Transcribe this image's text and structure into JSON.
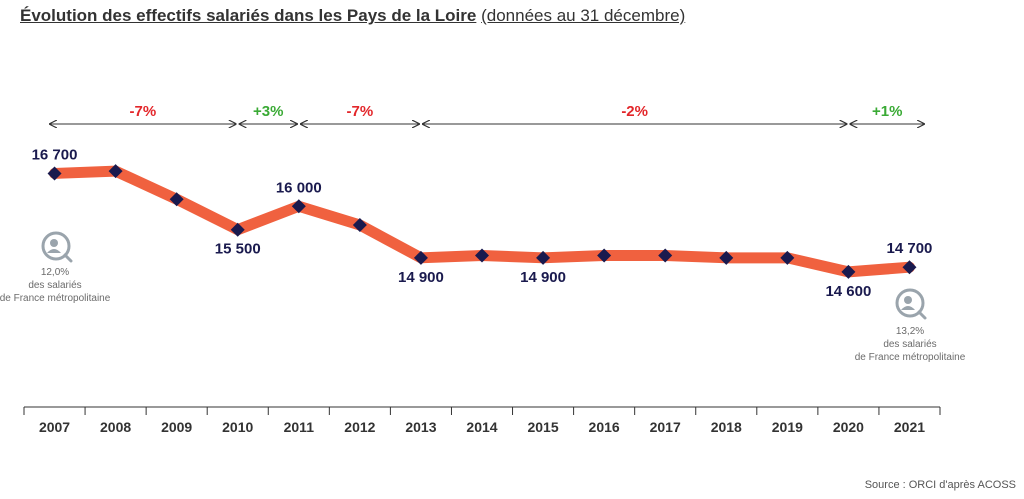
{
  "title": {
    "main": "Évolution des effectifs salariés dans les Pays de la Loire",
    "sub": "(données au 31 décembre)"
  },
  "source": "Source : ORCI d'après ACOSS",
  "colors": {
    "line": "#f0613f",
    "marker": "#1a1a4e",
    "label": "#1a1a4e",
    "negative": "#e3262a",
    "positive": "#3aaa35",
    "note": "#6b6b6b",
    "icon": "#9aa4ac"
  },
  "chart_data": {
    "type": "line",
    "categories": [
      "2007",
      "2008",
      "2009",
      "2010",
      "2011",
      "2012",
      "2013",
      "2014",
      "2015",
      "2016",
      "2017",
      "2018",
      "2019",
      "2020",
      "2021"
    ],
    "values": [
      16700,
      16750,
      16150,
      15500,
      16000,
      15600,
      14900,
      14950,
      14900,
      14950,
      14950,
      14900,
      14900,
      14600,
      14700
    ],
    "data_labels": [
      {
        "index": 0,
        "text": "16 700",
        "pos": "above"
      },
      {
        "index": 3,
        "text": "15 500",
        "pos": "below"
      },
      {
        "index": 4,
        "text": "16 000",
        "pos": "above"
      },
      {
        "index": 6,
        "text": "14 900",
        "pos": "below"
      },
      {
        "index": 8,
        "text": "14 900",
        "pos": "below"
      },
      {
        "index": 13,
        "text": "14 600",
        "pos": "below"
      },
      {
        "index": 14,
        "text": "14 700",
        "pos": "above"
      }
    ],
    "periods": [
      {
        "from": 0,
        "to": 3,
        "label": "-7%",
        "sign": "negative"
      },
      {
        "from": 3,
        "to": 4,
        "label": "+3%",
        "sign": "positive"
      },
      {
        "from": 4,
        "to": 6,
        "label": "-7%",
        "sign": "negative"
      },
      {
        "from": 6,
        "to": 13,
        "label": "-2%",
        "sign": "negative"
      },
      {
        "from": 13,
        "to": 14,
        "label": "+1%",
        "sign": "positive"
      }
    ],
    "notes": [
      {
        "index": 0,
        "lines": [
          "12,0%",
          "des salariés",
          "de France métropolitaine"
        ]
      },
      {
        "index": 14,
        "lines": [
          "13,2%",
          "des salariés",
          "de France métropolitaine"
        ]
      }
    ],
    "ylim": [
      14000,
      17200
    ],
    "grid": false
  }
}
